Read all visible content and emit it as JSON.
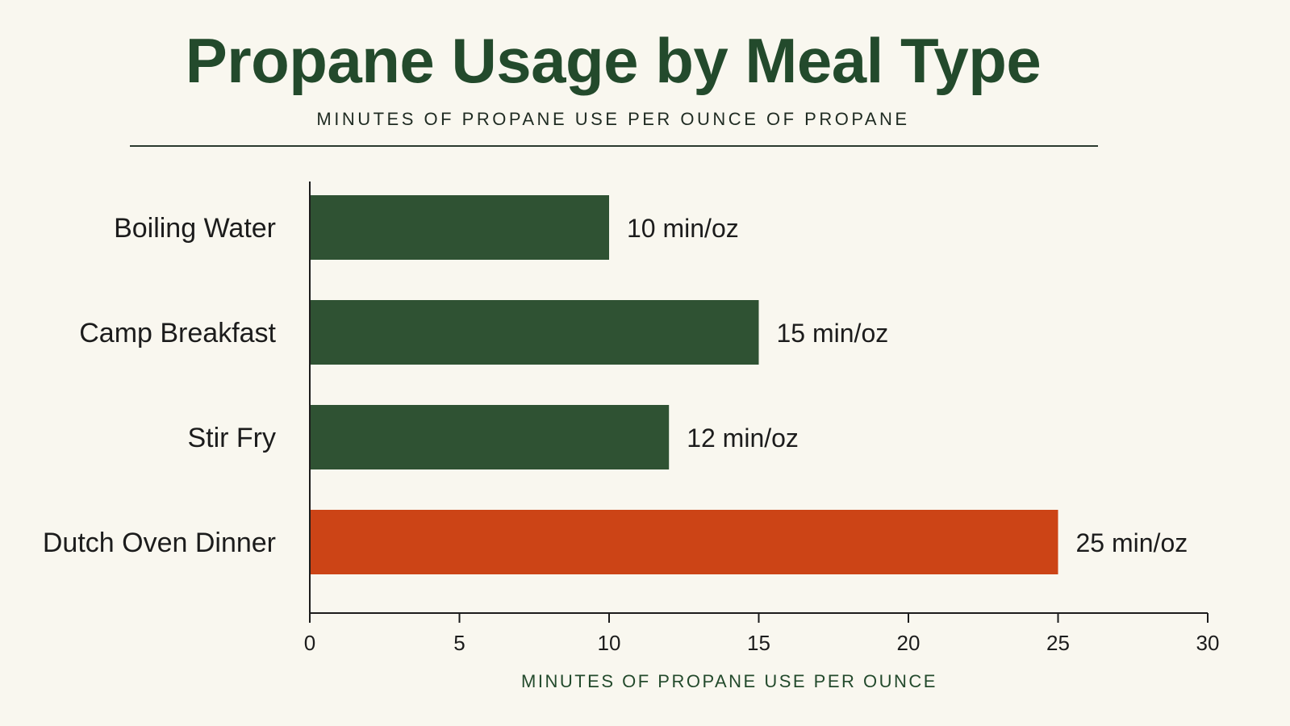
{
  "chart_data": {
    "type": "bar",
    "orientation": "horizontal",
    "title": "Propane Usage by Meal Type",
    "subtitle": "MINUTES OF PROPANE USE PER OUNCE OF PROPANE",
    "xlabel": "MINUTES OF PROPANE USE PER OUNCE",
    "ylabel": "",
    "categories": [
      "Boiling Water",
      "Camp Breakfast",
      "Stir Fry",
      "Dutch Oven Dinner"
    ],
    "values": [
      10,
      15,
      12,
      25
    ],
    "value_labels": [
      "10 min/oz",
      "15 min/oz",
      "12 min/oz",
      "25 min/oz"
    ],
    "xlim": [
      0,
      30
    ],
    "xticks": [
      0,
      5,
      10,
      15,
      20,
      25,
      30
    ],
    "grid": false,
    "legend": "none",
    "colors": [
      "#2f5233",
      "#2f5233",
      "#2f5233",
      "#cc4416"
    ],
    "highlight_category": "Dutch Oven Dinner"
  },
  "colors": {
    "background": "#f9f7ef",
    "title": "#234a2c",
    "bar_default": "#2f5233",
    "bar_highlight": "#cc4416"
  }
}
